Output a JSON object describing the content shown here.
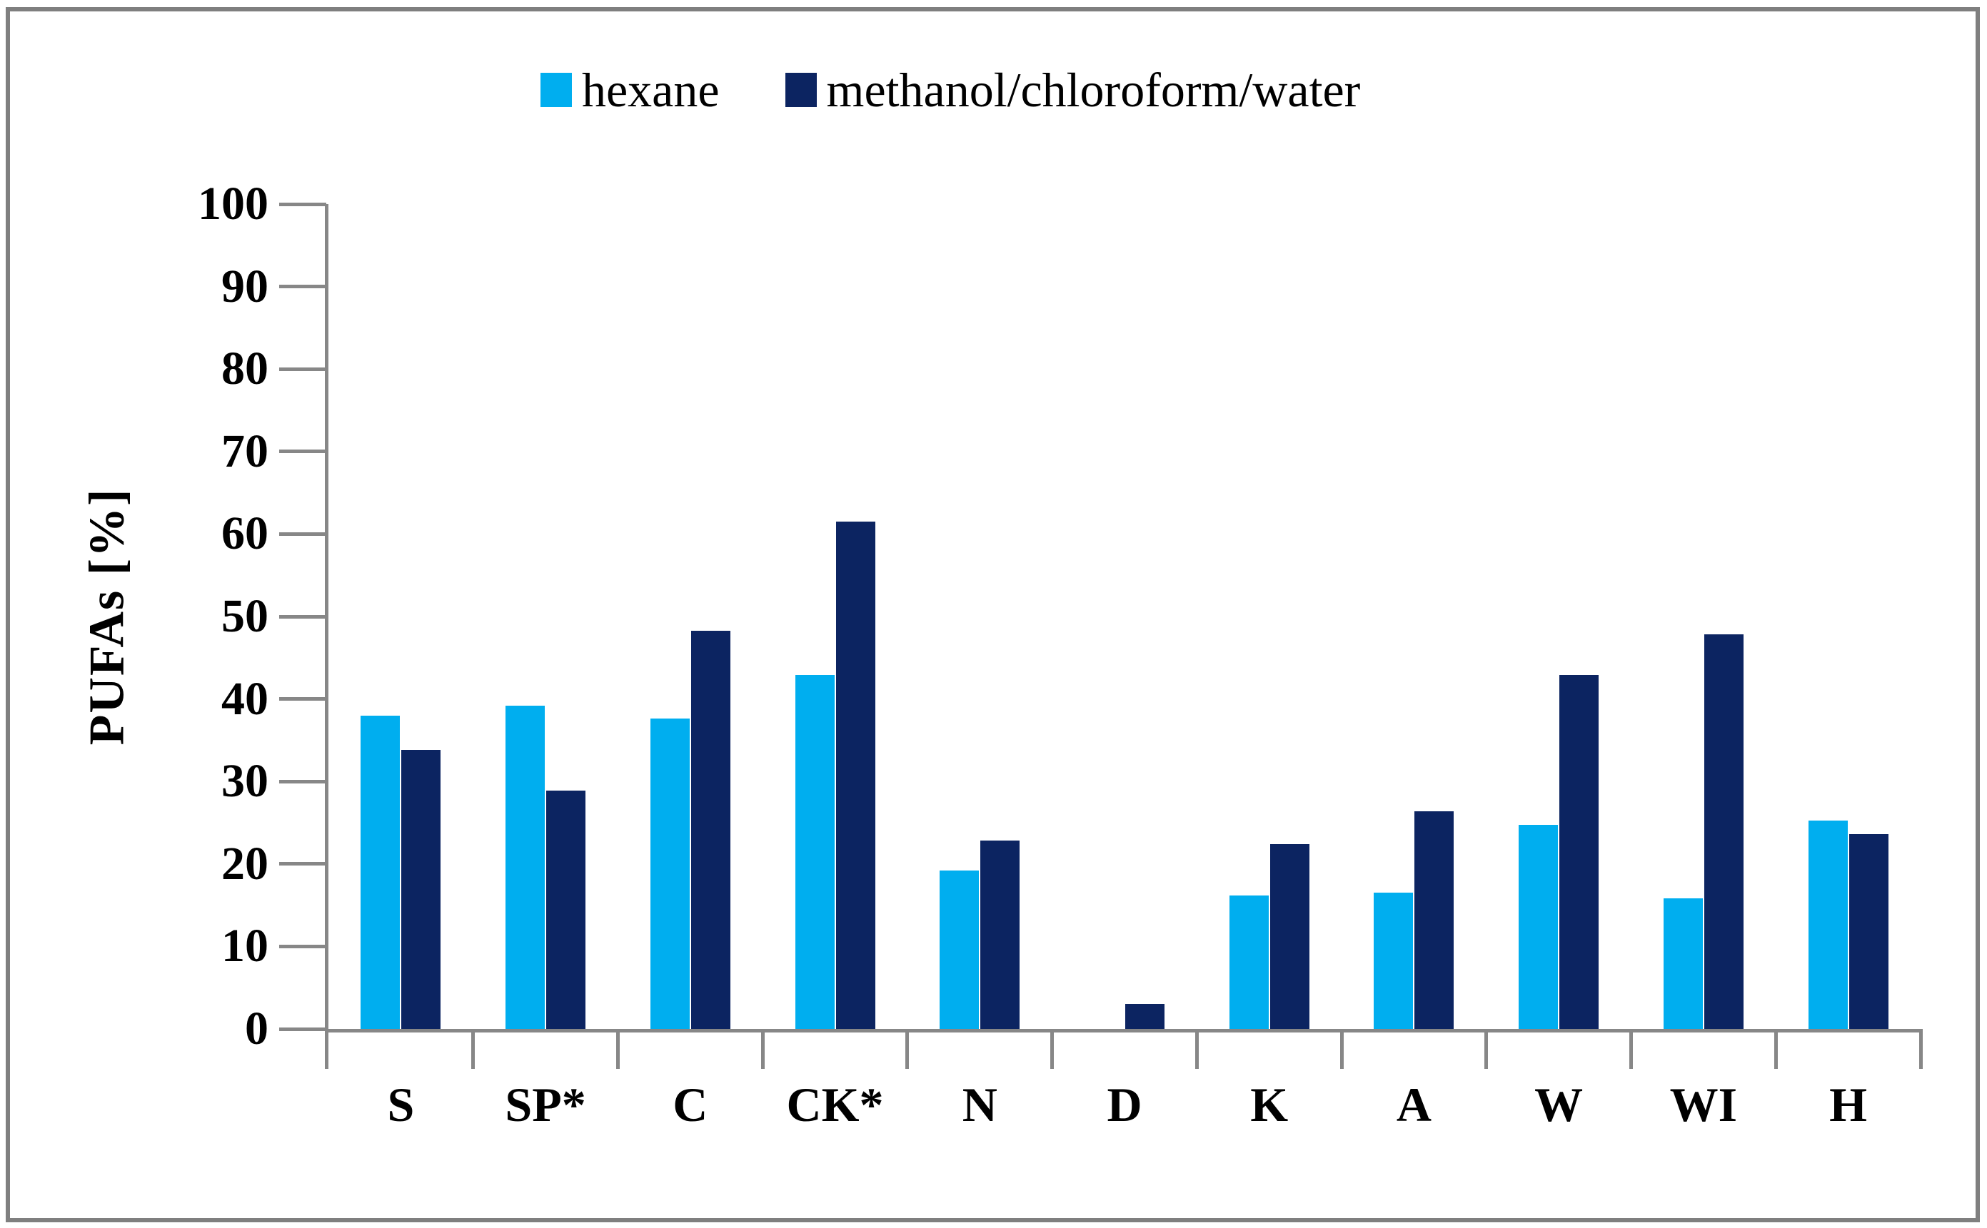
{
  "figure": {
    "background": "#FFFFFF",
    "border_color": "#7F7F7F",
    "axis_color": "#878787"
  },
  "legend": {
    "position": "top-center",
    "items": [
      {
        "label": "hexane",
        "color": "#00AEEF"
      },
      {
        "label": "methanol/chloroform/water",
        "color": "#0C2461"
      }
    ]
  },
  "chart_data": {
    "type": "bar",
    "title": "",
    "xlabel": "",
    "ylabel": "PUFAs [%]",
    "ylim": [
      0,
      100
    ],
    "y_tick_step": 10,
    "y_tick_labels": [
      "0",
      "10",
      "20",
      "30",
      "40",
      "50",
      "60",
      "70",
      "80",
      "90",
      "100"
    ],
    "grid": false,
    "legend_position": "top-center",
    "categories": [
      "S",
      "SP*",
      "C",
      "CK*",
      "N",
      "D",
      "K",
      "A",
      "W",
      "WI",
      "H"
    ],
    "series": [
      {
        "name": "hexane",
        "color": "#00AEEF",
        "values": [
          38.0,
          39.2,
          37.6,
          42.9,
          19.2,
          0,
          16.2,
          16.5,
          24.7,
          15.8,
          25.3
        ]
      },
      {
        "name": "methanol/chloroform/water",
        "color": "#0C2461",
        "values": [
          33.8,
          28.9,
          48.3,
          61.5,
          22.8,
          3.0,
          22.4,
          26.4,
          42.9,
          47.8,
          23.6
        ]
      }
    ]
  }
}
